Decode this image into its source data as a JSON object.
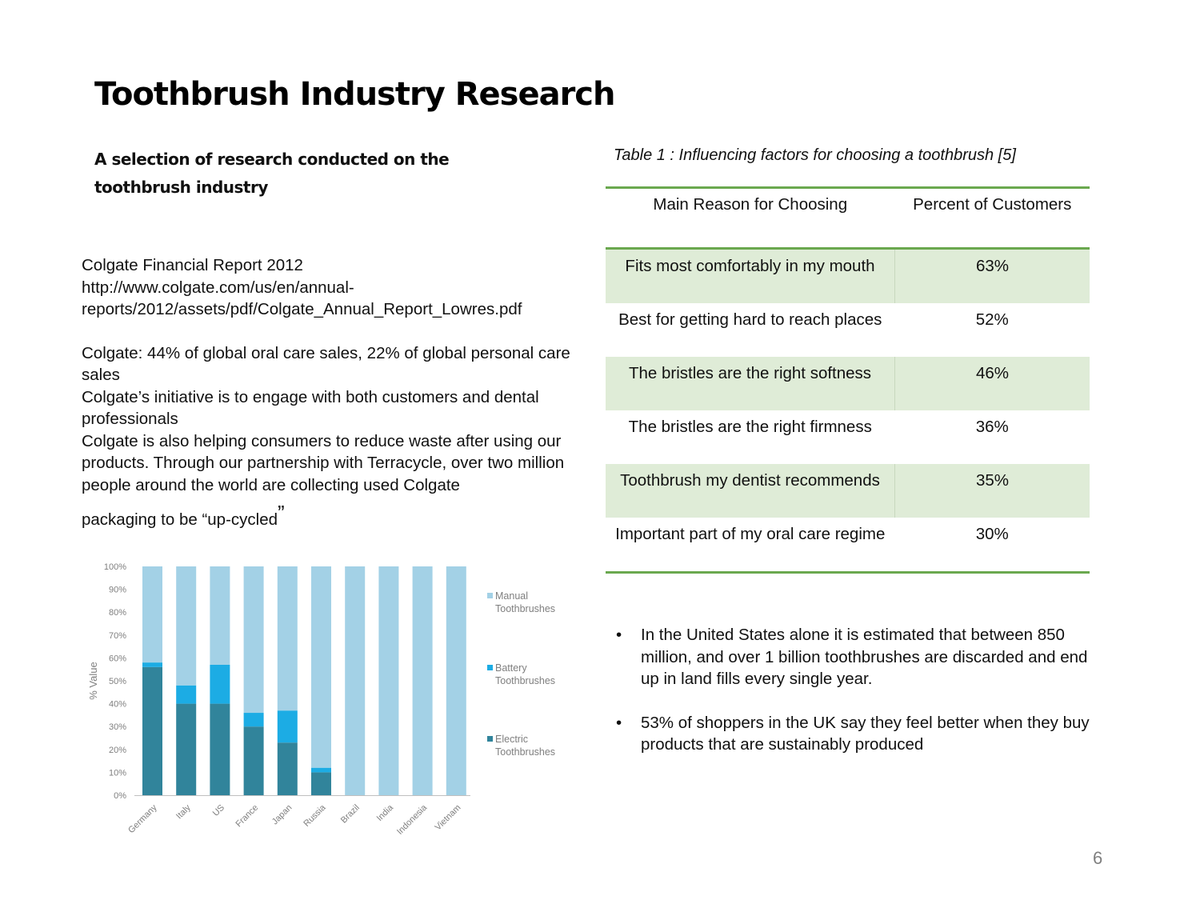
{
  "page": {
    "title": "Toothbrush Industry Research",
    "subtitle": "A selection of research conducted on the toothbrush industry",
    "page_number": "6"
  },
  "report": {
    "heading": "Colgate Financial Report 2012",
    "url_line1": "http://www.colgate.com/us/en/annual-",
    "url_line2": "reports/2012/assets/pdf/Colgate_Annual_Report_Lowres.pdf",
    "para1": "Colgate: 44% of global oral care sales, 22% of global personal care sales",
    "para2": "Colgate’s initiative is to engage with both customers and dental professionals",
    "para3": "Colgate is also helping consumers to reduce waste after using our products. Through our partnership with Terracycle, over two million people around the world are collecting used Colgate",
    "para3_last": "packaging to be “up-cycled",
    "para3_quote": "”"
  },
  "table": {
    "caption": "Table 1 : Influencing factors for choosing a toothbrush [5]",
    "headers": [
      "Main Reason for Choosing",
      "Percent of Customers"
    ],
    "rows": [
      {
        "reason": "Fits most comfortably in my mouth",
        "percent": "63%"
      },
      {
        "reason": "Best for getting hard to reach places",
        "percent": "52%"
      },
      {
        "reason": "The bristles are the right softness",
        "percent": "46%"
      },
      {
        "reason": "The bristles are the right firmness",
        "percent": "36%"
      },
      {
        "reason": "Toothbrush my dentist recommends",
        "percent": "35%"
      },
      {
        "reason": "Important part of my oral care regime",
        "percent": "30%"
      }
    ]
  },
  "bullets": [
    "In the United States alone it is estimated that between 850 million, and over 1 billion toothbrushes are discarded and end up in land fills every single year.",
    "53% of shoppers in the UK say they feel better when they buy products that are sustainably produced"
  ],
  "bullet_symbol": "•",
  "chart_data": {
    "type": "bar",
    "stacked": true,
    "ylabel": "% Value",
    "ylim": [
      0,
      100
    ],
    "yticks": [
      "0%",
      "10%",
      "20%",
      "30%",
      "40%",
      "50%",
      "60%",
      "70%",
      "80%",
      "90%",
      "100%"
    ],
    "categories": [
      "Germany",
      "Italy",
      "US",
      "France",
      "Japan",
      "Russia",
      "Brazil",
      "India",
      "Indonesia",
      "Vietnam"
    ],
    "series": [
      {
        "name": "Electric Toothbrushes",
        "color": "#31849b",
        "values": [
          56,
          40,
          40,
          30,
          23,
          10,
          0,
          0,
          0,
          0
        ]
      },
      {
        "name": "Battery Toothbrushes",
        "color": "#1cace4",
        "values": [
          2,
          8,
          17,
          6,
          14,
          2,
          0,
          0,
          0,
          0
        ]
      },
      {
        "name": "Manual Toothbrushes",
        "color": "#a3d1e6",
        "values": [
          42,
          52,
          43,
          64,
          63,
          88,
          100,
          100,
          100,
          100
        ]
      }
    ],
    "legend_order": [
      "Manual Toothbrushes",
      "Battery Toothbrushes",
      "Electric Toothbrushes"
    ],
    "legend_lines": {
      "Manual Toothbrushes": [
        "Manual",
        "Toothbrushes"
      ],
      "Battery Toothbrushes": [
        "Battery",
        "Toothbrushes"
      ],
      "Electric Toothbrushes": [
        "Electric",
        "Toothbrushes"
      ]
    },
    "legend_position": "right",
    "grid": false
  }
}
